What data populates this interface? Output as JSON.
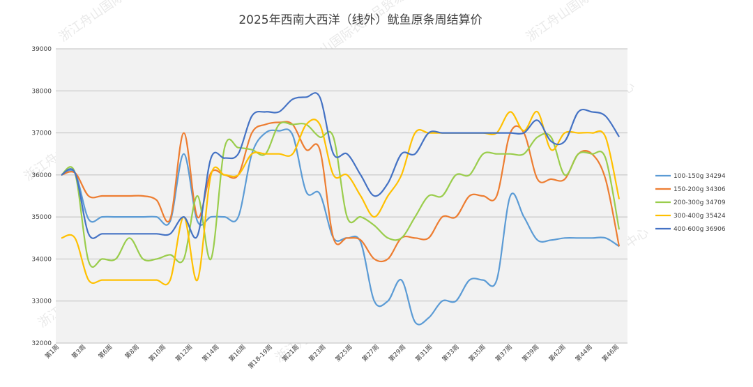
{
  "watermark": "浙江舟山国际农产品贸易中心",
  "chart_data": {
    "type": "line",
    "title": "2025年西南大西洋（线外）鱿鱼原条周结算价",
    "x_labels": [
      "第1周",
      "第3周",
      "第6周",
      "第8周",
      "第10周",
      "第12周",
      "第14周",
      "第16周",
      "第18-19周",
      "第21周",
      "第23周",
      "第25周",
      "第27周",
      "第29周",
      "第31周",
      "第33周",
      "第35周",
      "第37周",
      "第39周",
      "第42周",
      "第44周",
      "第46周"
    ],
    "ylim": [
      32000,
      39000
    ],
    "yticks": [
      32000,
      33000,
      34000,
      35000,
      36000,
      37000,
      38000,
      39000
    ],
    "grid": true,
    "legend_position": "right",
    "series": [
      {
        "name": "100-150g",
        "latest": "34294",
        "color": "#5b9bd5",
        "values": [
          36000,
          36050,
          34950,
          35000,
          35000,
          35000,
          35000,
          35000,
          34900,
          36500,
          34900,
          35000,
          35000,
          35000,
          36500,
          37000,
          37050,
          36950,
          35600,
          35550,
          34500,
          34500,
          34400,
          33000,
          33000,
          33500,
          32500,
          32600,
          33000,
          33000,
          33500,
          33500,
          33500,
          35500,
          35000,
          34450,
          34450,
          34500,
          34500,
          34500,
          34500,
          34300
        ]
      },
      {
        "name": "150-200g",
        "latest": "34306",
        "color": "#ed7d31",
        "values": [
          36000,
          36050,
          35500,
          35500,
          35500,
          35500,
          35500,
          35400,
          34950,
          37000,
          35000,
          36050,
          36000,
          36000,
          37000,
          37200,
          37250,
          37200,
          36600,
          36600,
          34500,
          34500,
          34450,
          34000,
          34000,
          34500,
          34500,
          34500,
          35000,
          35000,
          35500,
          35500,
          35500,
          37000,
          37000,
          35900,
          35900,
          35900,
          36500,
          36500,
          35900,
          34300
        ]
      },
      {
        "name": "200-300g",
        "latest": "34709",
        "color": "#9acd4c",
        "values": [
          36000,
          36050,
          33950,
          34000,
          34000,
          34500,
          34000,
          34000,
          34100,
          34000,
          35500,
          34000,
          36650,
          36650,
          36600,
          36500,
          37200,
          37200,
          37200,
          36900,
          36900,
          35000,
          35000,
          34800,
          34500,
          34500,
          35000,
          35500,
          35500,
          36000,
          36000,
          36500,
          36500,
          36500,
          36500,
          36900,
          36900,
          36000,
          36500,
          36500,
          36400,
          34700
        ]
      },
      {
        "name": "300-400g",
        "latest": "35424",
        "color": "#ffc000",
        "values": [
          34500,
          34500,
          33500,
          33500,
          33500,
          33500,
          33500,
          33500,
          33500,
          35000,
          33500,
          36000,
          36000,
          36000,
          36500,
          36500,
          36500,
          36500,
          37200,
          37200,
          36000,
          36000,
          35500,
          35000,
          35500,
          36000,
          37000,
          37000,
          37000,
          37000,
          37000,
          37000,
          37000,
          37500,
          37050,
          37500,
          36600,
          37000,
          37000,
          37000,
          36900,
          35424
        ]
      },
      {
        "name": "400-600g",
        "latest": "36906",
        "color": "#4472c4",
        "values": [
          36000,
          36050,
          34600,
          34600,
          34600,
          34600,
          34600,
          34600,
          34600,
          35000,
          34550,
          36400,
          36400,
          36500,
          37400,
          37500,
          37500,
          37800,
          37850,
          37850,
          36500,
          36500,
          36000,
          35500,
          35800,
          36500,
          36500,
          37000,
          37000,
          37000,
          37000,
          37000,
          37000,
          37000,
          37000,
          37300,
          36800,
          36800,
          37500,
          37500,
          37400,
          36906
        ]
      }
    ]
  }
}
